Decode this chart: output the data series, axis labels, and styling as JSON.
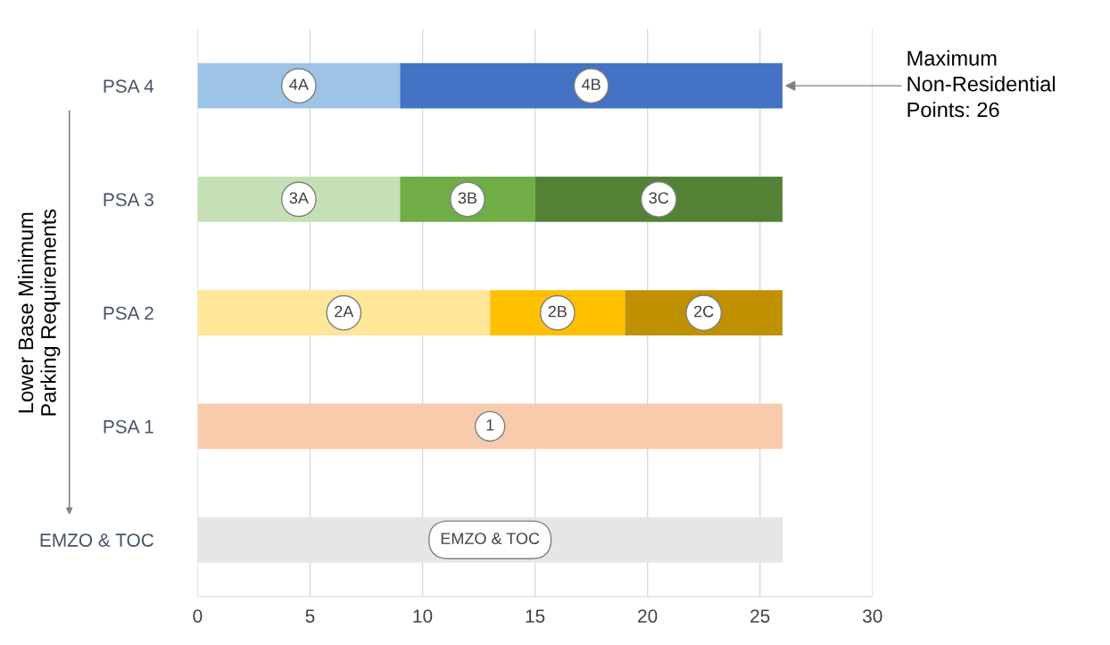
{
  "chart_data": {
    "type": "bar",
    "orientation": "horizontal",
    "stacked": true,
    "ylabel": "Lower Base Minimum\nParking Requirements",
    "categories": [
      "PSA 4",
      "PSA 3",
      "PSA 2",
      "PSA 1",
      "EMZO & TOC"
    ],
    "series": [
      {
        "colors": [
          "#9dc3e6",
          "#c5e0b4",
          "#ffe699",
          "#f8cbad",
          "#e7e6e6"
        ],
        "values": [
          9,
          9,
          13,
          26,
          26
        ]
      },
      {
        "colors": [
          "#4472c4",
          "#70ad47",
          "#ffc000",
          "#f8cbad",
          "#e7e6e6"
        ],
        "values": [
          17,
          6,
          6,
          null,
          null
        ]
      },
      {
        "colors": [
          "#4472c4",
          "#548235",
          "#bf9000",
          "#f8cbad",
          "#e7e6e6"
        ],
        "values": [
          null,
          11,
          7,
          null,
          null
        ]
      }
    ],
    "xlim": [
      0,
      30
    ],
    "xticks": [
      0,
      5,
      10,
      15,
      20,
      25,
      30
    ],
    "grid": "x",
    "annotations": [
      {
        "text": "4A",
        "x": 4.5,
        "y": "PSA 4"
      },
      {
        "text": "4B",
        "x": 17.5,
        "y": "PSA 4"
      },
      {
        "text": "3A",
        "x": 4.5,
        "y": "PSA 3"
      },
      {
        "text": "3B",
        "x": 12,
        "y": "PSA 3"
      },
      {
        "text": "3C",
        "x": 20.5,
        "y": "PSA 3"
      },
      {
        "text": "2A",
        "x": 6.5,
        "y": "PSA 2"
      },
      {
        "text": "2B",
        "x": 16,
        "y": "PSA 2"
      },
      {
        "text": "2C",
        "x": 22.5,
        "y": "PSA 2"
      },
      {
        "text": "1",
        "x": 13,
        "y": "PSA 1"
      },
      "EMZO & TOC",
      {
        "text": "Maximum\nNon-Residential\nPoints: 26",
        "x": 26,
        "y": "PSA 4"
      }
    ]
  }
}
